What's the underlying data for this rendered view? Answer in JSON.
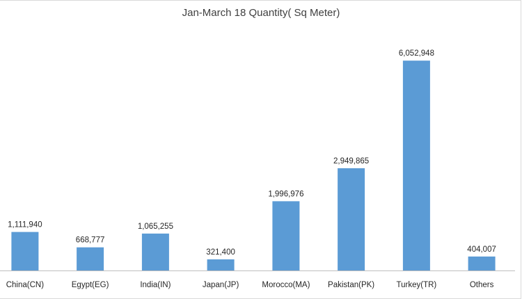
{
  "chart_data": {
    "type": "bar",
    "title": "Jan-March 18 Quantity( Sq Meter)",
    "xlabel": "",
    "ylabel": "",
    "categories": [
      "China(CN)",
      "Egypt(EG)",
      "India(IN)",
      "Japan(JP)",
      "Morocco(MA)",
      "Pakistan(PK)",
      "Turkey(TR)",
      "Others"
    ],
    "values": [
      1111940,
      668777,
      1065255,
      321400,
      1996976,
      2949865,
      6052948,
      404007
    ],
    "value_labels": [
      "1,111,940",
      "668,777",
      "1,065,255",
      "321,400",
      "1,996,976",
      "2,949,865",
      "6,052,948",
      "404,007"
    ],
    "ylim": [
      0,
      7000000
    ],
    "grid": false,
    "legend": "none",
    "bar_color": "#5b9bd5",
    "axis_color": "#bfbfbf"
  }
}
